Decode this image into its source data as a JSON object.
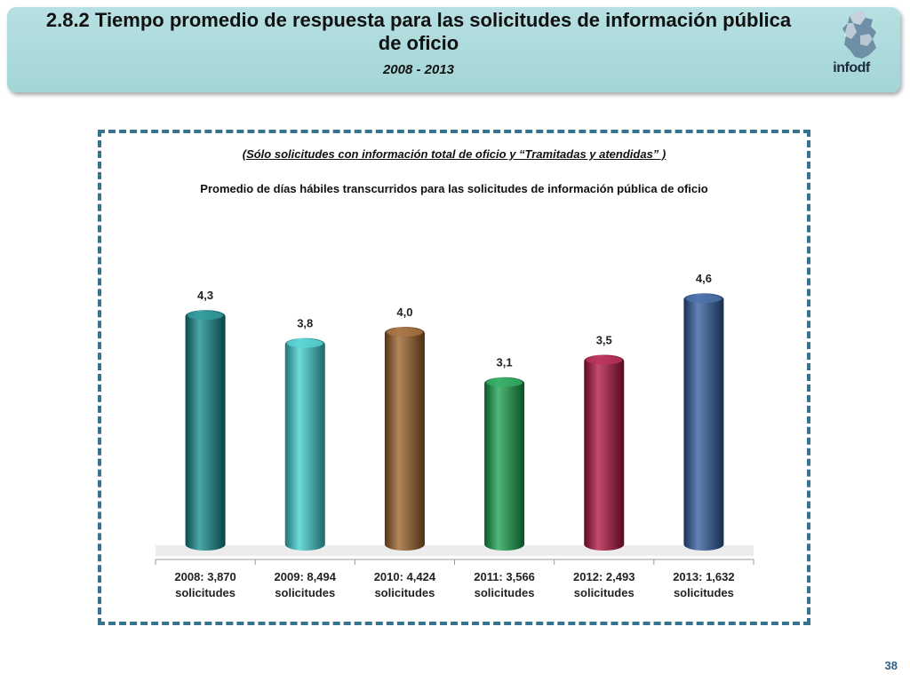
{
  "header": {
    "title": "2.8.2 Tiempo promedio de respuesta para las solicitudes de información pública de oficio",
    "years": "2008 - 2013",
    "logo_text": "infodf"
  },
  "page_number": "38",
  "colors": {
    "header_bg": "#a8d8da",
    "frame": "#37738f",
    "bars": [
      "#0f8a8c",
      "#3ecfcf",
      "#9a5e24",
      "#14a04a",
      "#b00f3e",
      "#2d5a9c"
    ]
  },
  "chart_data": {
    "type": "bar",
    "subtitle": "(Sólo solicitudes con información total de oficio y “Tramitadas y atendidas” )",
    "title": "Promedio de días hábiles transcurridos para las solicitudes de información pública de oficio",
    "categories": [
      [
        "2008:  3,870",
        "solicitudes"
      ],
      [
        "2009: 8,494",
        "solicitudes"
      ],
      [
        "2010: 4,424",
        "solicitudes"
      ],
      [
        "2011: 3,566",
        "solicitudes"
      ],
      [
        "2012: 2,493",
        "solicitudes"
      ],
      [
        "2013:  1,632",
        "solicitudes"
      ]
    ],
    "values": [
      4.3,
      3.8,
      4.0,
      3.1,
      3.5,
      4.6
    ],
    "value_labels": [
      "4,3",
      "3,8",
      "4,0",
      "3,1",
      "3,5",
      "4,6"
    ],
    "ylim": [
      0,
      5
    ],
    "grid": false,
    "xlabel": "",
    "ylabel": ""
  }
}
